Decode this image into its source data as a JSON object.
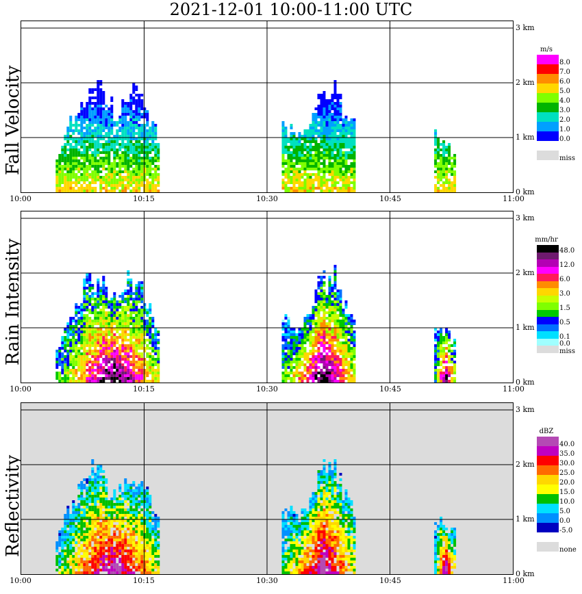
{
  "title": "2021-12-01   10:00-11:00 UTC",
  "colors": {
    "miss": "#dcdcdc",
    "grid": "#000000"
  },
  "chart_data": [
    {
      "type": "heatmap",
      "title": "Fall Velocity",
      "ylabel": "Fall Velocity",
      "x_ticks": [
        "10:00",
        "10:15",
        "10:30",
        "10:45",
        "11:00"
      ],
      "y_ticks": [
        "0 km",
        "1 km",
        "2 km",
        "3 km"
      ],
      "xlim": [
        "10:00",
        "11:00"
      ],
      "ylim_km": [
        0,
        3.0
      ],
      "background": "white",
      "legend": {
        "unit": "m/s",
        "entries": [
          {
            "label": "8.0",
            "color": "#ff00ff"
          },
          {
            "label": "7.0",
            "color": "#ff0000"
          },
          {
            "label": "6.0",
            "color": "#ff8c00"
          },
          {
            "label": "5.0",
            "color": "#ffd700"
          },
          {
            "label": "4.0",
            "color": "#7fff00"
          },
          {
            "label": "3.0",
            "color": "#00b400"
          },
          {
            "label": "2.0",
            "color": "#00e0c0"
          },
          {
            "label": "1.0",
            "color": "#00a0ff"
          },
          {
            "label": "0.0",
            "color": "#0000ff"
          },
          {
            "label": "",
            "color": "#ffffff"
          },
          {
            "label": "miss",
            "color": "#dcdcdc"
          }
        ]
      }
    },
    {
      "type": "heatmap",
      "title": "Rain Intensity",
      "ylabel": "Rain Intensity",
      "x_ticks": [
        "10:00",
        "10:15",
        "10:30",
        "10:45",
        "11:00"
      ],
      "y_ticks": [
        "0 km",
        "1 km",
        "2 km",
        "3 km"
      ],
      "xlim": [
        "10:00",
        "11:00"
      ],
      "ylim_km": [
        0,
        3.0
      ],
      "background": "white",
      "legend": {
        "unit": "mm/hr",
        "entries": [
          {
            "label": "48.0",
            "color": "#000000"
          },
          {
            "label": "",
            "color": "#6e1a6e"
          },
          {
            "label": "12.0",
            "color": "#b400b4"
          },
          {
            "label": "",
            "color": "#ff00ff"
          },
          {
            "label": "6.0",
            "color": "#ff1a5a"
          },
          {
            "label": "",
            "color": "#ff8c00"
          },
          {
            "label": "3.0",
            "color": "#ffd700"
          },
          {
            "label": "",
            "color": "#c8ff00"
          },
          {
            "label": "1.5",
            "color": "#7fff00"
          },
          {
            "label": "",
            "color": "#00c800"
          },
          {
            "label": "0.5",
            "color": "#0000ff"
          },
          {
            "label": "",
            "color": "#0070ff"
          },
          {
            "label": "0.1",
            "color": "#00e0ff"
          },
          {
            "label": "0.0",
            "color": "#a0ffff"
          },
          {
            "label": "miss",
            "color": "#dcdcdc"
          }
        ]
      }
    },
    {
      "type": "heatmap",
      "title": "Reflectivity",
      "ylabel": "Reflectivity",
      "x_ticks": [
        "10:00",
        "10:15",
        "10:30",
        "10:45",
        "11:00"
      ],
      "y_ticks": [
        "0 km",
        "1 km",
        "2 km",
        "3 km"
      ],
      "xlim": [
        "10:00",
        "11:00"
      ],
      "ylim_km": [
        0,
        3.0
      ],
      "background": "#dcdcdc",
      "legend": {
        "unit": "dBZ",
        "entries": [
          {
            "label": "40.0",
            "color": "#b44ab4"
          },
          {
            "label": "35.0",
            "color": "#c000c0"
          },
          {
            "label": "30.0",
            "color": "#ff0000"
          },
          {
            "label": "25.0",
            "color": "#ff6a00"
          },
          {
            "label": "20.0",
            "color": "#ffd700"
          },
          {
            "label": "15.0",
            "color": "#ffff00"
          },
          {
            "label": "10.0",
            "color": "#00c000"
          },
          {
            "label": "5.0",
            "color": "#00e0ff"
          },
          {
            "label": "0.0",
            "color": "#0090ff"
          },
          {
            "label": "-5.0",
            "color": "#0000c0"
          },
          {
            "label": "",
            "color": "#ffffff"
          },
          {
            "label": "none",
            "color": "#dcdcdc"
          }
        ]
      }
    }
  ]
}
